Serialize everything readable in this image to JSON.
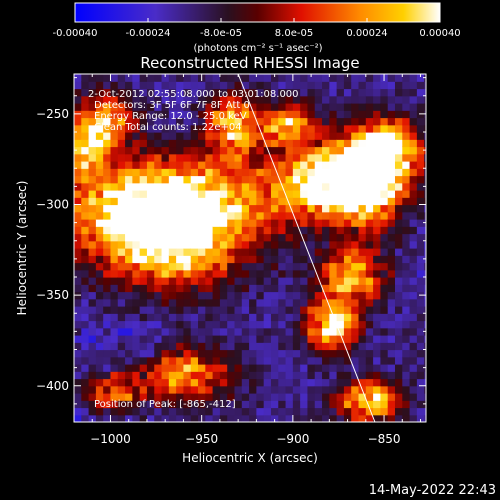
{
  "colorbar": {
    "ticks": [
      "-0.00040",
      "-0.00024",
      "-8.0e-05",
      "8.0e-05",
      "0.00024",
      "0.00040"
    ],
    "tick_values": [
      -0.0004,
      -0.00024,
      -8e-05,
      8e-05,
      0.00024,
      0.0004
    ],
    "range": [
      -0.0004,
      0.0004
    ],
    "units": "(photons cm⁻² s⁻¹ asec⁻²)",
    "colors": [
      "#0000ff",
      "#5a2bb8",
      "#3a1a4a",
      "#8b0000",
      "#ff2a00",
      "#ff8c00",
      "#ffd700",
      "#ffffff"
    ]
  },
  "chart_data": {
    "type": "heatmap",
    "title": "Reconstructed RHESSI Image",
    "xlabel": "Heliocentric X (arcsec)",
    "ylabel": "Heliocentric Y (arcsec)",
    "xlim": [
      -1020,
      -827
    ],
    "ylim": [
      -420,
      -228
    ],
    "xticks": [
      -1000,
      -950,
      -900,
      -850
    ],
    "yticks": [
      -400,
      -350,
      -300,
      -250
    ],
    "xtick_labels": [
      "−1000",
      "−950",
      "−900",
      "−850"
    ],
    "ytick_labels": [
      "−400",
      "−350",
      "−300",
      "−250"
    ],
    "info": [
      "2-Oct-2012 02:55:08.000 to 03:01:08.000",
      "Detectors: 3F 5F 6F 7F 8F  Att 0",
      "Energy Range: 12.0 - 25.0 keV",
      "Clean    Total counts: 1.22e+04"
    ],
    "peak_label": "Position of Peak: [-865,-412]",
    "peak": [
      -865,
      -412
    ],
    "limb_line": {
      "x": [
        -930,
        -855
      ],
      "y": [
        -228,
        -420
      ]
    },
    "hot_regions": [
      {
        "x": -990,
        "y": -305,
        "sx": 28,
        "sy": 18,
        "amp": 0.9
      },
      {
        "x": -950,
        "y": -300,
        "sx": 30,
        "sy": 16,
        "amp": 0.8
      },
      {
        "x": -965,
        "y": -330,
        "sx": 25,
        "sy": 14,
        "amp": 0.7
      },
      {
        "x": -885,
        "y": -290,
        "sx": 18,
        "sy": 14,
        "amp": 1.0
      },
      {
        "x": -860,
        "y": -290,
        "sx": 16,
        "sy": 18,
        "amp": 1.0
      },
      {
        "x": -850,
        "y": -270,
        "sx": 12,
        "sy": 10,
        "amp": 0.9
      },
      {
        "x": -870,
        "y": -340,
        "sx": 14,
        "sy": 10,
        "amp": 0.85
      },
      {
        "x": -880,
        "y": -368,
        "sx": 10,
        "sy": 10,
        "amp": 0.95
      },
      {
        "x": -935,
        "y": -258,
        "sx": 10,
        "sy": 12,
        "amp": 0.8
      },
      {
        "x": -1005,
        "y": -255,
        "sx": 12,
        "sy": 10,
        "amp": 0.7
      },
      {
        "x": -1015,
        "y": -270,
        "sx": 8,
        "sy": 10,
        "amp": 0.8
      },
      {
        "x": -960,
        "y": -395,
        "sx": 18,
        "sy": 10,
        "amp": 0.7
      },
      {
        "x": -1000,
        "y": -405,
        "sx": 14,
        "sy": 8,
        "amp": 0.6
      },
      {
        "x": -860,
        "y": -410,
        "sx": 12,
        "sy": 8,
        "amp": 0.9
      },
      {
        "x": -905,
        "y": -258,
        "sx": 10,
        "sy": 8,
        "amp": 0.8
      }
    ]
  },
  "timestamp": "14-May-2022 22:43"
}
